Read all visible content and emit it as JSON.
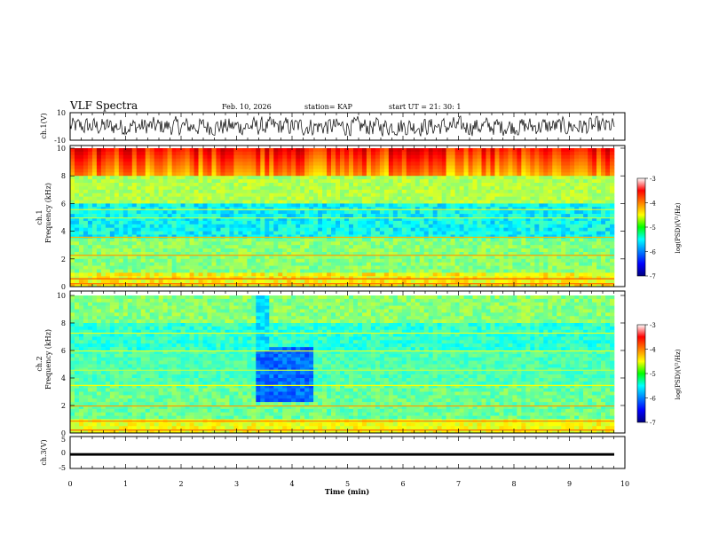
{
  "header": {
    "title": "VLF Spectra",
    "date": "Feb. 10, 2026",
    "station": "station= KAP",
    "start_ut": "start  UT =   21: 30: 1"
  },
  "chart_data": [
    {
      "id": "ch1-waveform",
      "type": "line",
      "ylabel": "ch.1(V)",
      "ylim": [
        -10,
        10
      ],
      "yticks": [
        "10",
        "-10"
      ],
      "xlim": [
        0,
        9.85
      ],
      "description_values": "noise waveform, amplitude approx ±6 V"
    },
    {
      "id": "ch1-spectrogram",
      "type": "heatmap",
      "ylabel_top": "ch.1",
      "ylabel": "Frequency (kHz)",
      "ylim": [
        0,
        10
      ],
      "yticks": [
        "0",
        "2",
        "4",
        "6",
        "8",
        "10"
      ],
      "xlim": [
        0,
        9.85
      ],
      "colorbar": {
        "label": "log(PSD)(V²/Hz)",
        "range": [
          -7,
          -3
        ],
        "ticks": [
          "-3",
          "-4",
          "-5",
          "-6",
          "-7"
        ]
      }
    },
    {
      "id": "ch2-spectrogram",
      "type": "heatmap",
      "ylabel_top": "ch.2",
      "ylabel": "Frequency (kHz)",
      "ylim": [
        0,
        10
      ],
      "yticks": [
        "0",
        "2",
        "4",
        "6",
        "8",
        "10"
      ],
      "xlim": [
        0,
        9.85
      ],
      "colorbar": {
        "label": "log(PSD)(V²/Hz)",
        "range": [
          -7,
          -3
        ],
        "ticks": [
          "-3",
          "-4",
          "-5",
          "-6",
          "-7"
        ]
      }
    },
    {
      "id": "ch3-signal",
      "type": "line",
      "ylabel": "ch.3(V)",
      "ylim": [
        -5,
        5
      ],
      "yticks": [
        "5",
        "0",
        "-5"
      ],
      "xlim": [
        0,
        9.85
      ],
      "level_range_v": [
        -1.0,
        -0.2
      ]
    }
  ],
  "time_axis": {
    "label": "Time  (min)",
    "ticks": [
      "0",
      "1",
      "2",
      "3",
      "4",
      "5",
      "6",
      "7",
      "8",
      "9",
      "10"
    ],
    "range": [
      0,
      10
    ]
  }
}
